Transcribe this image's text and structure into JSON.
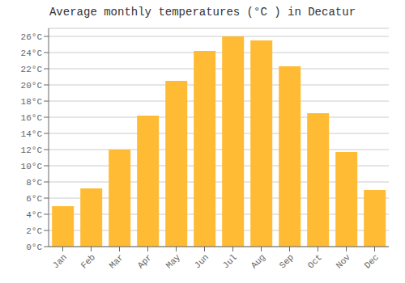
{
  "chart_data": {
    "type": "bar",
    "title": "Average monthly temperatures (°C ) in Decatur",
    "categories": [
      "Jan",
      "Feb",
      "Mar",
      "Apr",
      "May",
      "Jun",
      "Jul",
      "Aug",
      "Sep",
      "Oct",
      "Nov",
      "Dec"
    ],
    "values": [
      5.0,
      7.2,
      12.0,
      16.2,
      20.5,
      24.2,
      26.0,
      25.5,
      22.3,
      16.5,
      11.7,
      7.0
    ],
    "color": "#FFBB33",
    "ylim": [
      0,
      27
    ],
    "yticks": [
      {
        "value": 0,
        "label": "0°C"
      },
      {
        "value": 2,
        "label": "2°C"
      },
      {
        "value": 4,
        "label": "4°C"
      },
      {
        "value": 6,
        "label": "6°C"
      },
      {
        "value": 8,
        "label": "8°C"
      },
      {
        "value": 10,
        "label": "10°C"
      },
      {
        "value": 12,
        "label": "12°C"
      },
      {
        "value": 14,
        "label": "14°C"
      },
      {
        "value": 16,
        "label": "16°C"
      },
      {
        "value": 18,
        "label": "18°C"
      },
      {
        "value": 20,
        "label": "20°C"
      },
      {
        "value": 22,
        "label": "22°C"
      },
      {
        "value": 24,
        "label": "24°C"
      },
      {
        "value": 26,
        "label": "26°C"
      }
    ],
    "grid": true
  }
}
